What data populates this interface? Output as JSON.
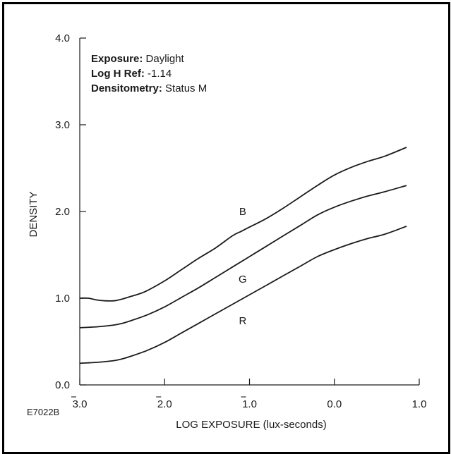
{
  "chart_data": {
    "type": "line",
    "ylabel": "DENSITY",
    "xlabel": "LOG EXPOSURE (lux-seconds)",
    "figure_code": "E7022B",
    "ylim": [
      0.0,
      4.0
    ],
    "xlim": [
      -3.0,
      1.0
    ],
    "y_ticks": [
      {
        "value": 0.0,
        "label": "0.0"
      },
      {
        "value": 1.0,
        "label": "1.0"
      },
      {
        "value": 2.0,
        "label": "2.0"
      },
      {
        "value": 3.0,
        "label": "3.0"
      },
      {
        "value": 4.0,
        "label": "4.0"
      }
    ],
    "x_ticks": [
      {
        "value": -3.0,
        "label": "3.0",
        "bar": true
      },
      {
        "value": -2.0,
        "label": "2.0",
        "bar": true
      },
      {
        "value": -1.0,
        "label": "1.0",
        "bar": true
      },
      {
        "value": 0.0,
        "label": "0.0",
        "bar": false
      },
      {
        "value": 1.0,
        "label": "1.0",
        "bar": false
      }
    ],
    "grid": false,
    "annotations": [
      {
        "bold": "Exposure:",
        "text": " Daylight"
      },
      {
        "bold": "Log H Ref:",
        "text": " -1.14"
      },
      {
        "bold": "Densitometry:",
        "text": " Status M"
      }
    ],
    "series": [
      {
        "name": "B",
        "color": "#1a1a1a",
        "label_at": [
          -1.08,
          2.0
        ],
        "x": [
          -3.0,
          -2.9,
          -2.8,
          -2.7,
          -2.6,
          -2.5,
          -2.4,
          -2.3,
          -2.2,
          -2.0,
          -1.8,
          -1.6,
          -1.4,
          -1.2,
          -1.1,
          -1.0,
          -0.8,
          -0.6,
          -0.4,
          -0.2,
          0.0,
          0.2,
          0.4,
          0.6,
          0.85
        ],
        "y": [
          1.0,
          1.0,
          0.98,
          0.97,
          0.97,
          0.99,
          1.02,
          1.05,
          1.09,
          1.2,
          1.33,
          1.46,
          1.58,
          1.72,
          1.77,
          1.82,
          1.92,
          2.04,
          2.17,
          2.3,
          2.42,
          2.51,
          2.58,
          2.64,
          2.74
        ]
      },
      {
        "name": "G",
        "color": "#1a1a1a",
        "label_at": [
          -1.08,
          1.22
        ],
        "x": [
          -3.0,
          -2.8,
          -2.6,
          -2.5,
          -2.4,
          -2.2,
          -2.0,
          -1.8,
          -1.6,
          -1.4,
          -1.2,
          -1.0,
          -0.8,
          -0.6,
          -0.4,
          -0.2,
          0.0,
          0.2,
          0.4,
          0.6,
          0.85
        ],
        "y": [
          0.66,
          0.67,
          0.69,
          0.71,
          0.74,
          0.81,
          0.9,
          1.01,
          1.12,
          1.24,
          1.36,
          1.48,
          1.6,
          1.72,
          1.84,
          1.96,
          2.05,
          2.12,
          2.18,
          2.23,
          2.3
        ]
      },
      {
        "name": "R",
        "color": "#1a1a1a",
        "label_at": [
          -1.08,
          0.74
        ],
        "x": [
          -3.0,
          -2.8,
          -2.6,
          -2.5,
          -2.4,
          -2.2,
          -2.0,
          -1.8,
          -1.6,
          -1.4,
          -1.2,
          -1.0,
          -0.8,
          -0.6,
          -0.4,
          -0.2,
          0.0,
          0.2,
          0.4,
          0.6,
          0.85
        ],
        "y": [
          0.25,
          0.26,
          0.28,
          0.3,
          0.33,
          0.4,
          0.49,
          0.6,
          0.71,
          0.82,
          0.93,
          1.04,
          1.15,
          1.26,
          1.37,
          1.48,
          1.56,
          1.63,
          1.69,
          1.74,
          1.83
        ]
      }
    ]
  }
}
